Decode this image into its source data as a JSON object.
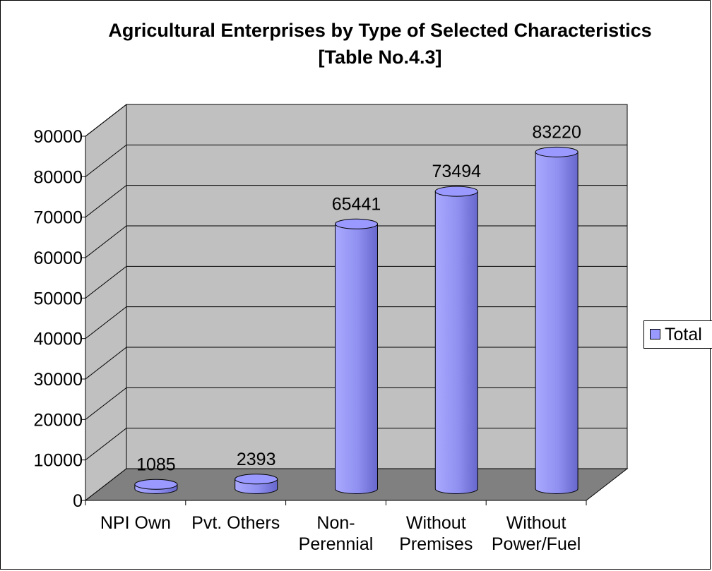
{
  "chart_data": {
    "type": "bar",
    "title": [
      "Agricultural Enterprises by Type of Selected Characteristics",
      "[Table No.4.3]"
    ],
    "categories": [
      [
        "NPI Own"
      ],
      [
        "Pvt. Others"
      ],
      [
        "Non-",
        "Perennial"
      ],
      [
        "Without",
        "Premises"
      ],
      [
        "Without",
        "Power/Fuel"
      ]
    ],
    "series": [
      {
        "name": "Total",
        "values": [
          1085,
          2393,
          65441,
          73494,
          83220
        ],
        "color": "#9999ff"
      }
    ],
    "ylim": [
      0,
      90000
    ],
    "yticks": [
      0,
      10000,
      20000,
      30000,
      40000,
      50000,
      60000,
      70000,
      80000,
      90000
    ],
    "grid": true,
    "legend_position": "right",
    "wall_color": "#c0c0c0",
    "floor_color": "#808080"
  }
}
